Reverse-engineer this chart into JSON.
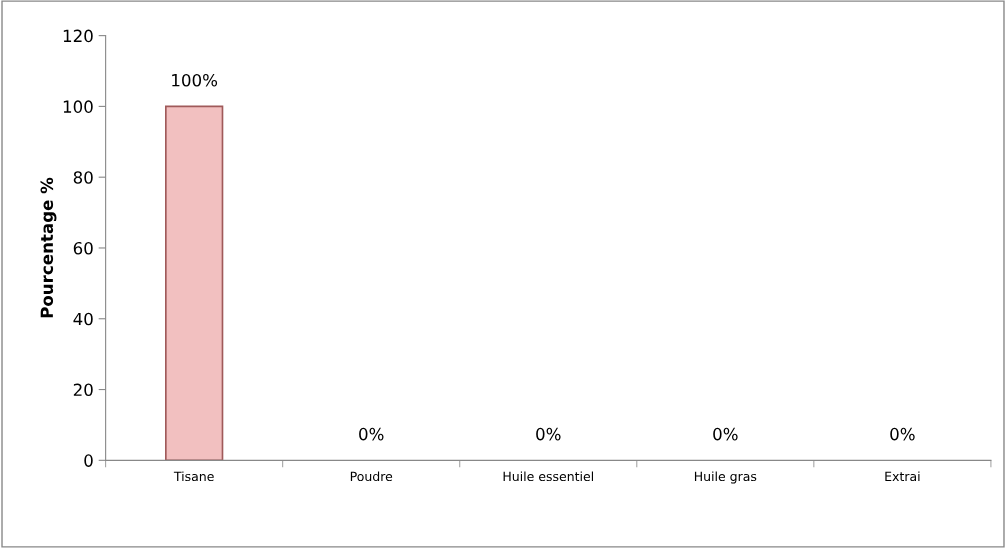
{
  "chart_data": {
    "type": "bar",
    "ylabel": "Pourcentage %",
    "categories": [
      "Tisane",
      "Poudre",
      "Huile essentiel",
      "Huile gras",
      "Extrai"
    ],
    "values": [
      100,
      0,
      0,
      0,
      0
    ],
    "color": "#f2c0c0",
    "value_labels": [
      "100%",
      "0%",
      "0%",
      "0%",
      "0%"
    ],
    "ylim": [
      0,
      120
    ],
    "yticks": [
      0,
      20,
      40,
      60,
      80,
      100,
      120
    ],
    "grid": false,
    "legend": false
  }
}
